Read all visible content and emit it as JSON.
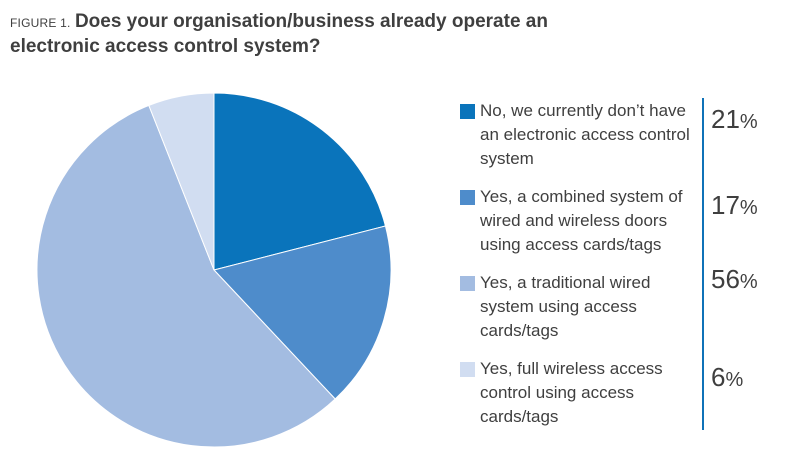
{
  "figure_prefix": "FIGURE 1.",
  "title": "Does your organisation/business already operate an electronic access control system?",
  "chart_data": {
    "type": "pie",
    "title": "Does your organisation/business already operate an electronic access control system?",
    "unit": "%",
    "legend_position": "right",
    "slices": [
      {
        "label": "No, we currently don’t have an electronic access control system",
        "value": 21,
        "display": "21",
        "color": "#0a74bb"
      },
      {
        "label": "Yes, a combined system of wired and wireless doors using access cards/tags",
        "value": 17,
        "display": "17",
        "color": "#4e8ccb"
      },
      {
        "label": "Yes, a traditional wired system using access cards/tags",
        "value": 56,
        "display": "56",
        "color": "#a3bce1"
      },
      {
        "label": "Yes, full wireless access control using access cards/tags",
        "value": 6,
        "display": "6",
        "color": "#d1ddf1"
      }
    ],
    "percent_sign": "%"
  }
}
